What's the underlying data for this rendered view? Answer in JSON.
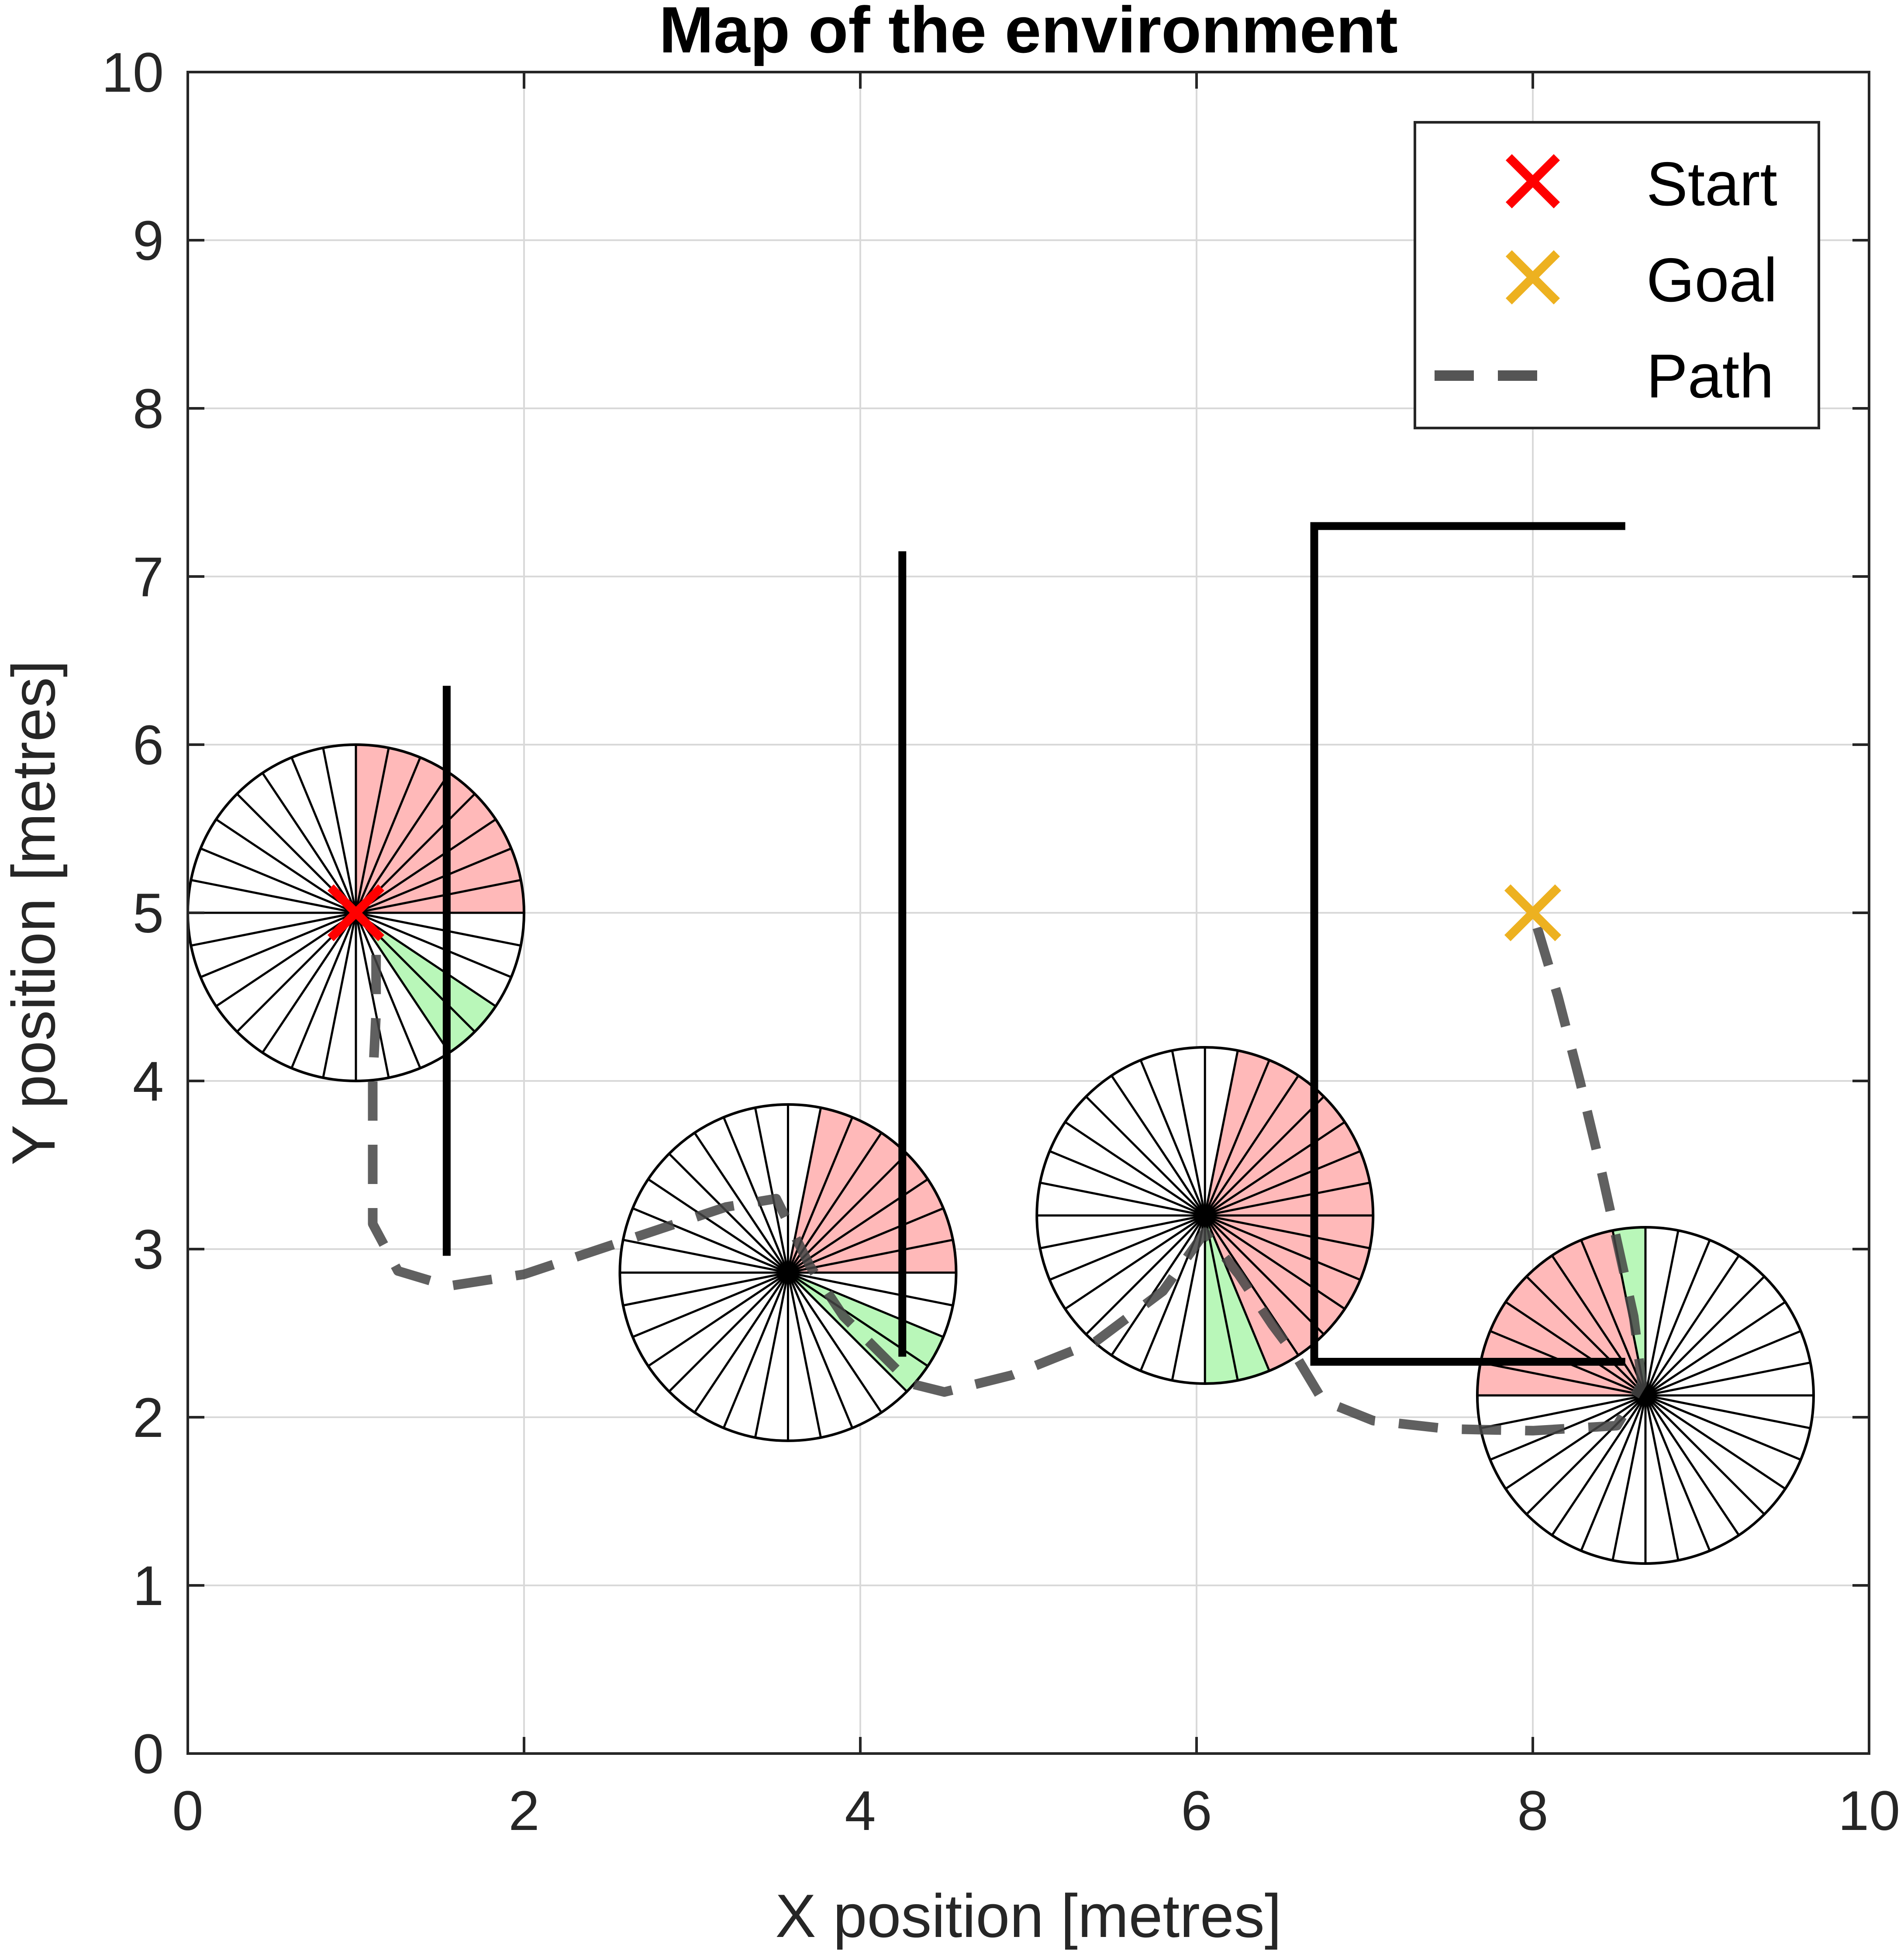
{
  "chart_data": {
    "type": "line",
    "title": "Map of the environment",
    "xlabel": "X position [metres]",
    "ylabel": "Y position [metres]",
    "xlim": [
      0,
      10
    ],
    "ylim": [
      0,
      10
    ],
    "xticks": [
      0,
      2,
      4,
      6,
      8,
      10
    ],
    "yticks": [
      0,
      1,
      2,
      3,
      4,
      5,
      6,
      7,
      8,
      9,
      10
    ],
    "grid": true,
    "legend": {
      "placement": "top-right",
      "entries": [
        {
          "label": "Start",
          "marker": "x",
          "color": "#ff0000"
        },
        {
          "label": "Goal",
          "marker": "x",
          "color": "#edb120"
        },
        {
          "label": "Path",
          "marker": "dashed-line",
          "color": "#555555"
        }
      ]
    },
    "start": {
      "x": 1.0,
      "y": 5.0
    },
    "goal": {
      "x": 8.0,
      "y": 5.0
    },
    "walls": [
      {
        "points": [
          [
            1.54,
            6.35
          ],
          [
            1.54,
            2.96
          ]
        ]
      },
      {
        "points": [
          [
            4.25,
            7.15
          ],
          [
            4.25,
            2.36
          ]
        ]
      },
      {
        "points": [
          [
            8.55,
            7.3
          ],
          [
            6.7,
            7.3
          ],
          [
            6.7,
            2.33
          ],
          [
            8.55,
            2.33
          ]
        ]
      }
    ],
    "path": [
      [
        1.12,
        4.75
      ],
      [
        1.12,
        4.4
      ],
      [
        1.1,
        4.0
      ],
      [
        1.1,
        3.5
      ],
      [
        1.1,
        3.15
      ],
      [
        1.25,
        2.87
      ],
      [
        1.55,
        2.78
      ],
      [
        2.0,
        2.85
      ],
      [
        2.6,
        3.05
      ],
      [
        3.2,
        3.25
      ],
      [
        3.5,
        3.3
      ],
      [
        3.7,
        2.9
      ],
      [
        3.9,
        2.6
      ],
      [
        4.1,
        2.4
      ],
      [
        4.3,
        2.2
      ],
      [
        4.5,
        2.15
      ],
      [
        4.9,
        2.25
      ],
      [
        5.4,
        2.45
      ],
      [
        5.8,
        2.75
      ],
      [
        6.05,
        3.1
      ],
      [
        6.25,
        2.85
      ],
      [
        6.45,
        2.55
      ],
      [
        6.6,
        2.35
      ],
      [
        6.75,
        2.1
      ],
      [
        7.05,
        1.98
      ],
      [
        7.5,
        1.93
      ],
      [
        8.0,
        1.92
      ],
      [
        8.5,
        1.95
      ],
      [
        8.65,
        2.2
      ],
      [
        8.6,
        2.6
      ],
      [
        8.5,
        3.05
      ],
      [
        8.4,
        3.5
      ],
      [
        8.28,
        4.0
      ],
      [
        8.15,
        4.5
      ],
      [
        8.0,
        5.0
      ]
    ],
    "sensor_wheels": [
      {
        "cx": 1.0,
        "cy": 5.0,
        "r": 1.0,
        "sectors": 32,
        "red_sectors": [
          [
            0,
            7
          ]
        ],
        "green_sectors": [
          [
            -5,
            -4
          ]
        ]
      },
      {
        "cx": 3.57,
        "cy": 2.86,
        "r": 1.0,
        "sectors": 32,
        "red_sectors": [
          [
            0,
            6
          ]
        ],
        "green_sectors": [
          [
            -4,
            -3
          ]
        ]
      },
      {
        "cx": 6.05,
        "cy": 3.2,
        "r": 1.0,
        "sectors": 32,
        "red_sectors": [
          [
            -6,
            6
          ]
        ],
        "green_sectors": [
          [
            -8,
            -7
          ]
        ]
      },
      {
        "cx": 8.67,
        "cy": 2.13,
        "r": 1.0,
        "sectors": 32,
        "red_sectors": [
          [
            9,
            15
          ]
        ],
        "green_sectors": [
          [
            8,
            8
          ]
        ]
      }
    ],
    "colors": {
      "red_fill": "#ffb9b9",
      "green_fill": "#b9f7b9",
      "wall": "#000000",
      "path": "#444444",
      "grid": "#d9d9d9"
    }
  }
}
